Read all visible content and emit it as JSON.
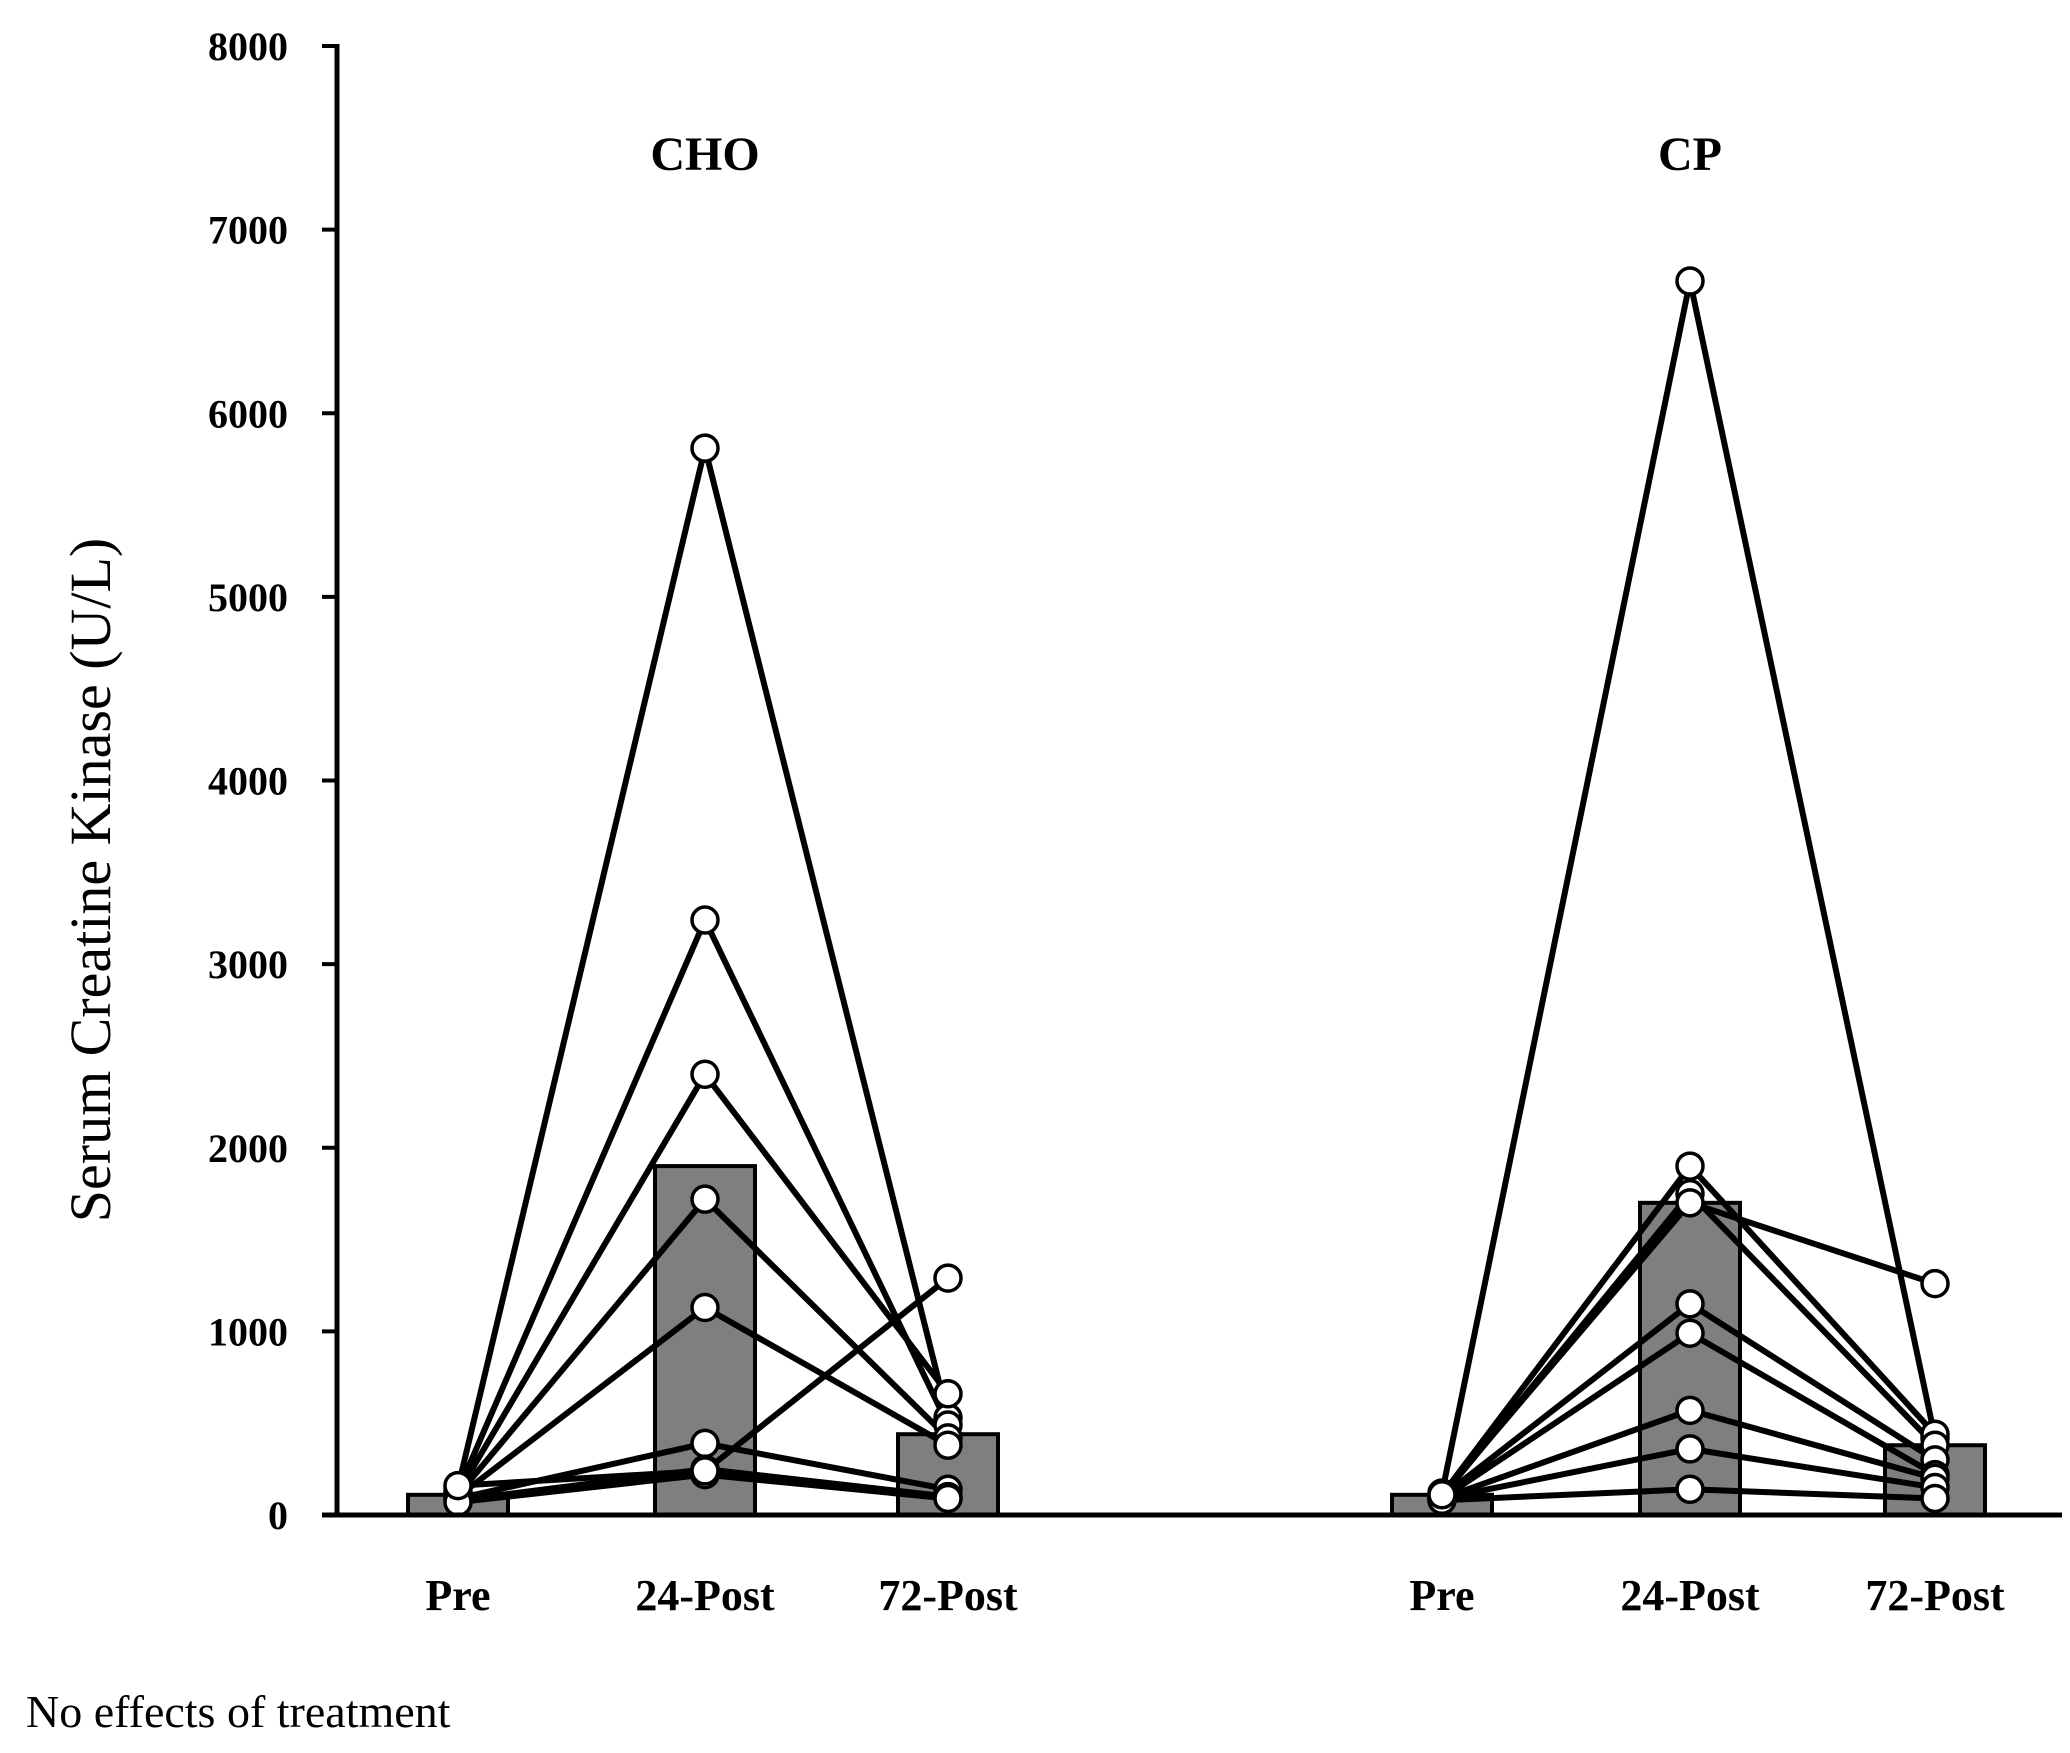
{
  "chart_data": {
    "type": "bar",
    "ylabel": "Serum Creatine Kinase (U/L)",
    "ylim": [
      0,
      8000
    ],
    "yticks": [
      0,
      1000,
      2000,
      3000,
      4000,
      5000,
      6000,
      7000,
      8000
    ],
    "footnote": "No effects of treatment",
    "groups": [
      {
        "name": "CHO",
        "categories": [
          "Pre",
          "24-Post",
          "72-Post"
        ],
        "bar_means": [
          110,
          1900,
          440
        ],
        "subjects": [
          [
            150,
            5810,
            530
          ],
          [
            130,
            3240,
            490
          ],
          [
            120,
            2400,
            660
          ],
          [
            110,
            1720,
            420
          ],
          [
            100,
            1130,
            380
          ],
          [
            90,
            390,
            140
          ],
          [
            80,
            250,
            100
          ],
          [
            70,
            220,
            90
          ],
          [
            160,
            240,
            1290
          ]
        ]
      },
      {
        "name": "CP",
        "categories": [
          "Pre",
          "24-Post",
          "72-Post"
        ],
        "bar_means": [
          110,
          1700,
          380
        ],
        "subjects": [
          [
            120,
            6720,
            420
          ],
          [
            110,
            1900,
            440
          ],
          [
            100,
            1750,
            380
          ],
          [
            100,
            1150,
            300
          ],
          [
            90,
            990,
            220
          ],
          [
            90,
            570,
            200
          ],
          [
            90,
            360,
            150
          ],
          [
            80,
            140,
            90
          ],
          [
            110,
            1700,
            1260
          ]
        ]
      }
    ]
  }
}
